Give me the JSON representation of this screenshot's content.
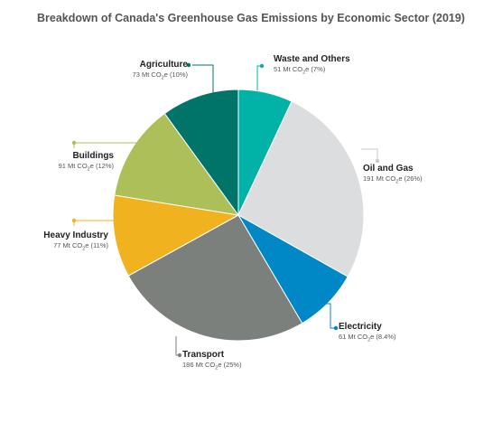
{
  "chart_data": {
    "type": "pie",
    "title": "Breakdown of Canada's Greenhouse Gas Emissions by Economic Sector (2019)",
    "unit_prefix": "Mt CO",
    "unit_sub": "2",
    "unit_suffix": "e",
    "slices": [
      {
        "name": "Waste and Others",
        "value": 51,
        "percent_label": "7%",
        "color": "#00b3a6"
      },
      {
        "name": "Oil and Gas",
        "value": 191,
        "percent_label": "26%",
        "color": "#dcdddf"
      },
      {
        "name": "Electricity",
        "value": 61,
        "percent_label": "8.4%",
        "color": "#0087c5"
      },
      {
        "name": "Transport",
        "value": 186,
        "percent_label": "25%",
        "color": "#7b807c"
      },
      {
        "name": "Heavy Industry",
        "value": 77,
        "percent_label": "11%",
        "color": "#f0b21f"
      },
      {
        "name": "Buildings",
        "value": 91,
        "percent_label": "12%",
        "color": "#acbf58"
      },
      {
        "name": "Agriculture",
        "value": 73,
        "percent_label": "10%",
        "color": "#007469"
      }
    ]
  }
}
